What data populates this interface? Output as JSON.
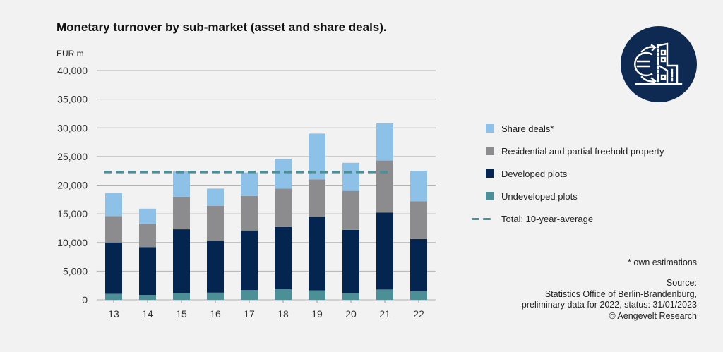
{
  "header": {
    "title": "Monetary turnover by sub-market (asset and share deals).",
    "unit_label": "EUR m"
  },
  "logo": {
    "icon": "euro-building-exchange-icon",
    "bg_color": "#0f2a52"
  },
  "legend": {
    "items": [
      {
        "label": "Share deals*",
        "color": "#8ec1e8",
        "type": "box"
      },
      {
        "label": "Residential and partial freehold property",
        "color": "#8c8c8e",
        "type": "box"
      },
      {
        "label": "Developed plots",
        "color": "#04254f",
        "type": "box"
      },
      {
        "label": "Undeveloped plots",
        "color": "#4d8f96",
        "type": "box"
      },
      {
        "label": "Total: 10-year-average",
        "color": "#4d8f96",
        "type": "dashed-line"
      }
    ]
  },
  "notes": {
    "estimation": "* own estimations",
    "source_lines": [
      "Source:",
      "Statistics Office of Berlin-Brandenburg,",
      "preliminary data for 2022, status: 31/01/2023",
      "© Aengevelt Research"
    ]
  },
  "chart_data": {
    "type": "bar",
    "stacked": true,
    "title": "Monetary turnover by sub-market (asset and share deals).",
    "xlabel": "",
    "ylabel": "EUR m",
    "ylim": [
      0,
      40000
    ],
    "yticks": [
      0,
      5000,
      10000,
      15000,
      20000,
      25000,
      30000,
      35000,
      40000
    ],
    "ytick_labels": [
      "0",
      "5,000",
      "10,000",
      "15,000",
      "20,000",
      "25,000",
      "30,000",
      "35,000",
      "40,000"
    ],
    "grid": true,
    "legend_position": "right",
    "categories": [
      "13",
      "14",
      "15",
      "16",
      "17",
      "18",
      "19",
      "20",
      "21",
      "22"
    ],
    "series": [
      {
        "name": "Undeveloped plots",
        "color": "#4d8f96",
        "values": [
          1050,
          850,
          1150,
          1250,
          1700,
          1850,
          1650,
          1100,
          1800,
          1500
        ]
      },
      {
        "name": "Developed plots",
        "color": "#04254f",
        "values": [
          8950,
          8350,
          11150,
          9050,
          10400,
          10850,
          12850,
          11100,
          13400,
          9100
        ]
      },
      {
        "name": "Residential and partial freehold property",
        "color": "#8c8c8e",
        "values": [
          4600,
          4100,
          5700,
          6100,
          6000,
          6700,
          6500,
          6800,
          9100,
          6600
        ]
      },
      {
        "name": "Share deals*",
        "color": "#8ec1e8",
        "values": [
          4000,
          2600,
          4400,
          3000,
          4100,
          5200,
          8000,
          4900,
          6500,
          5300
        ]
      }
    ],
    "reference_line": {
      "name": "Total: 10-year-average",
      "value": 22300,
      "from_category": "13",
      "to_category": "21",
      "style": "dashed",
      "color": "#4d8f96"
    }
  }
}
